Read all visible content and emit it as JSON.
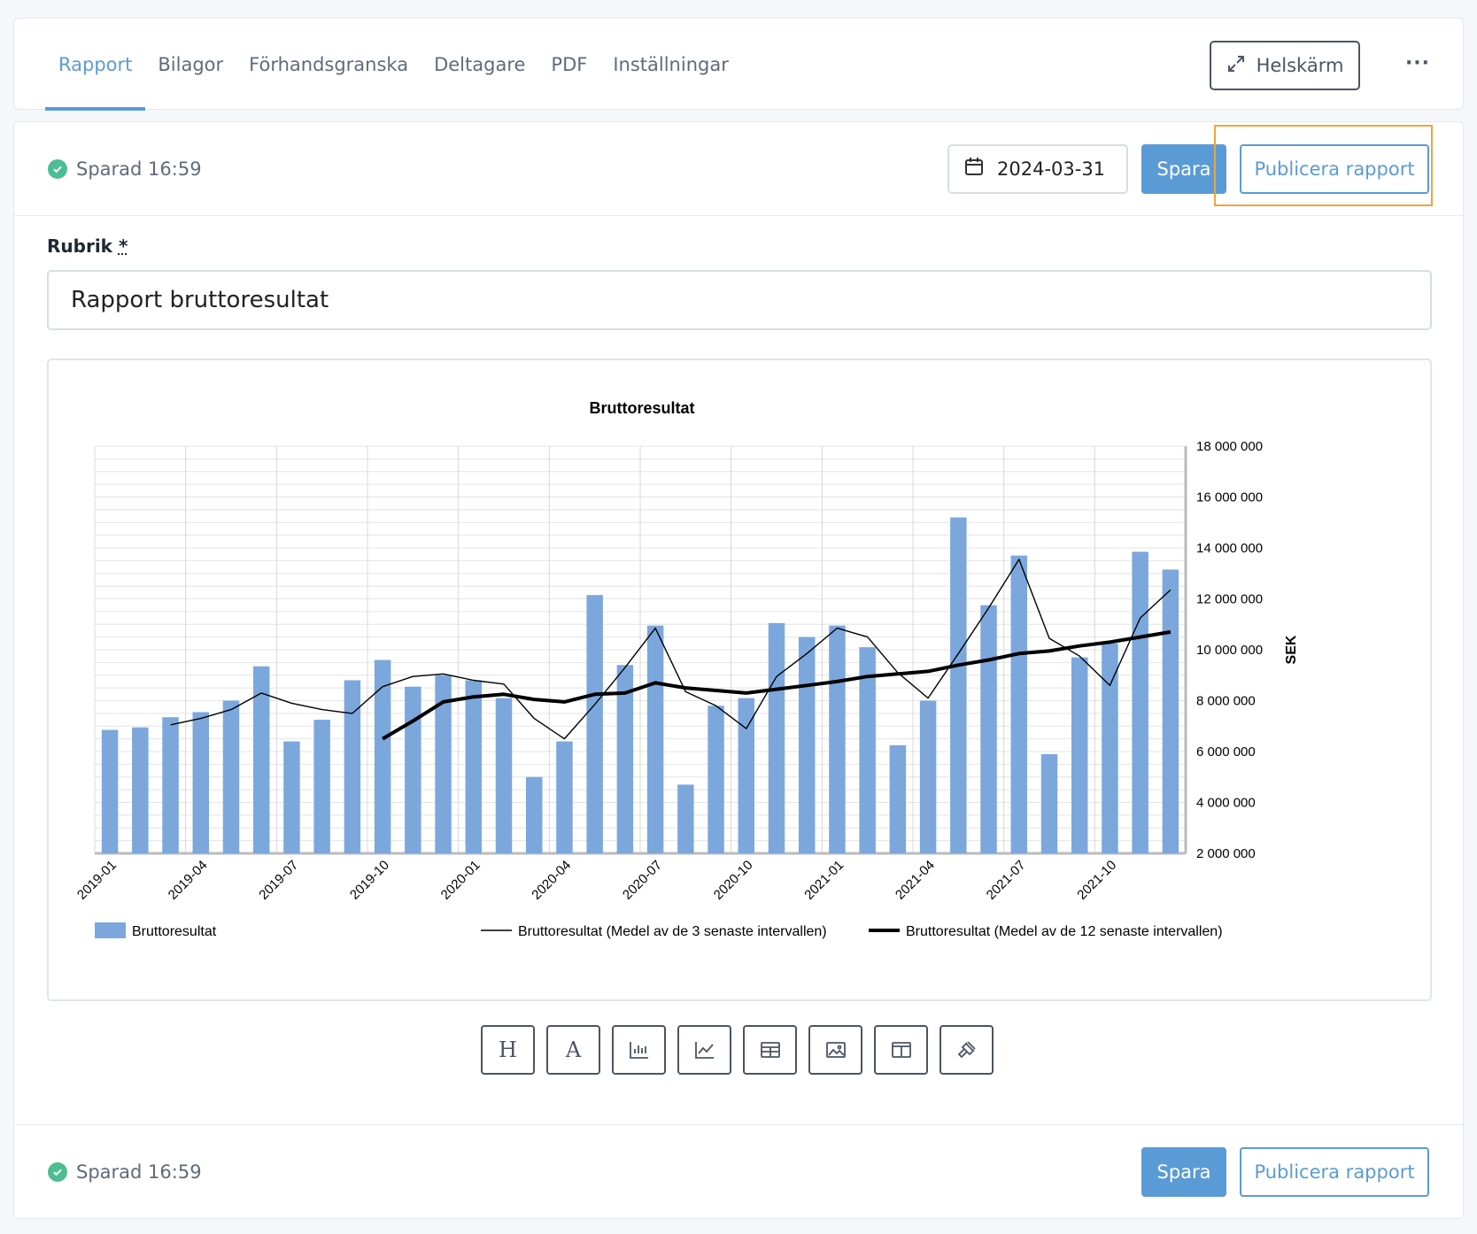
{
  "tabs": [
    {
      "label": "Rapport",
      "active": true
    },
    {
      "label": "Bilagor"
    },
    {
      "label": "Förhandsgranska"
    },
    {
      "label": "Deltagare"
    },
    {
      "label": "PDF"
    },
    {
      "label": "Inställningar"
    }
  ],
  "header": {
    "fullscreen_label": "Helskärm",
    "more_label": "···"
  },
  "topbar": {
    "saved_text": "Sparad 16:59",
    "date_value": "2024-03-31",
    "save_label": "Spara",
    "publish_label": "Publicera rapport"
  },
  "form": {
    "rubrik_label": "Rubrik",
    "required_mark": "*",
    "rubrik_value": "Rapport bruttoresultat"
  },
  "footer": {
    "saved_text": "Sparad 16:59",
    "save_label": "Spara",
    "publish_label": "Publicera rapport"
  },
  "toolbar": [
    {
      "name": "heading-tool",
      "icon": "H"
    },
    {
      "name": "text-tool",
      "icon": "A"
    },
    {
      "name": "bar-chart-tool",
      "icon": "bar-chart-icon"
    },
    {
      "name": "line-chart-tool",
      "icon": "line-chart-icon"
    },
    {
      "name": "table-tool",
      "icon": "table-icon"
    },
    {
      "name": "image-tool",
      "icon": "image-icon"
    },
    {
      "name": "layout-tool",
      "icon": "columns-icon"
    },
    {
      "name": "gavel-tool",
      "icon": "gavel-icon"
    }
  ],
  "colors": {
    "accent": "#5a9bd5",
    "bar": "#7ba7dc",
    "saved_check": "#4dbd93",
    "highlight": "#f0a43a"
  },
  "chart_data": {
    "type": "bar",
    "title": "Bruttoresultat",
    "ylabel": "SEK",
    "ylim": [
      2000000,
      18000000
    ],
    "ytick_labels": [
      "2 000 000",
      "4 000 000",
      "6 000 000",
      "8 000 000",
      "10 000 000",
      "12 000 000",
      "14 000 000",
      "16 000 000",
      "18 000 000"
    ],
    "xtick_labels": [
      "2019-01",
      "2019-04",
      "2019-07",
      "2019-10",
      "2020-01",
      "2020-04",
      "2020-07",
      "2020-10",
      "2021-01",
      "2021-04",
      "2021-07",
      "2021-10"
    ],
    "categories": [
      "2019-01",
      "2019-02",
      "2019-03",
      "2019-04",
      "2019-05",
      "2019-06",
      "2019-07",
      "2019-08",
      "2019-09",
      "2019-10",
      "2019-11",
      "2019-12",
      "2020-01",
      "2020-02",
      "2020-03",
      "2020-04",
      "2020-05",
      "2020-06",
      "2020-07",
      "2020-08",
      "2020-09",
      "2020-10",
      "2020-11",
      "2020-12",
      "2021-01",
      "2021-02",
      "2021-03",
      "2021-04",
      "2021-05",
      "2021-06",
      "2021-07",
      "2021-08",
      "2021-09",
      "2021-10",
      "2021-11",
      "2021-12"
    ],
    "legend_position": "bottom",
    "grid": true,
    "series": [
      {
        "name": "Bruttoresultat",
        "kind": "bar",
        "values": [
          6850000,
          6950000,
          7350000,
          7550000,
          8000000,
          9350000,
          6400000,
          7250000,
          8800000,
          9600000,
          8550000,
          9000000,
          8800000,
          8100000,
          5000000,
          6400000,
          12150000,
          9400000,
          10950000,
          4700000,
          7800000,
          8100000,
          11050000,
          10500000,
          10950000,
          10100000,
          6250000,
          8000000,
          15200000,
          11750000,
          13700000,
          5900000,
          9700000,
          10250000,
          13850000,
          13150000
        ]
      },
      {
        "name": "Bruttoresultat (Medel av de 3 senaste intervallen)",
        "kind": "line",
        "values": [
          null,
          null,
          7050000,
          7300000,
          7650000,
          8300000,
          7900000,
          7650000,
          7500000,
          8550000,
          8950000,
          9050000,
          8800000,
          8650000,
          7300000,
          6500000,
          7850000,
          9300000,
          10850000,
          8350000,
          7800000,
          6900000,
          8950000,
          9850000,
          10850000,
          10500000,
          9100000,
          8100000,
          9850000,
          11650000,
          13550000,
          10450000,
          9750000,
          8600000,
          11250000,
          12350000
        ]
      },
      {
        "name": "Bruttoresultat (Medel av de 12 senaste intervallen)",
        "kind": "line",
        "values": [
          null,
          null,
          null,
          null,
          null,
          null,
          null,
          null,
          null,
          6500000,
          7200000,
          7950000,
          8150000,
          8250000,
          8050000,
          7950000,
          8250000,
          8300000,
          8700000,
          8500000,
          8400000,
          8300000,
          8450000,
          8600000,
          8750000,
          8950000,
          9050000,
          9150000,
          9400000,
          9600000,
          9850000,
          9950000,
          10150000,
          10300000,
          10500000,
          10700000
        ]
      }
    ]
  }
}
